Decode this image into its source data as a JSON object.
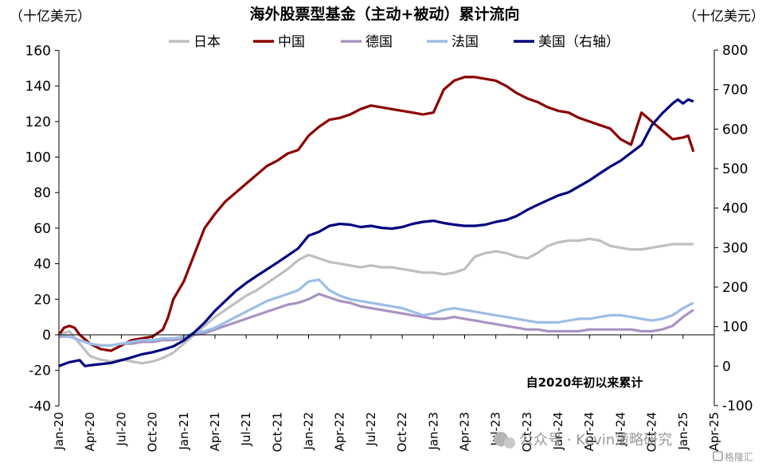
{
  "chart_data": {
    "type": "line",
    "title": "海外股票型基金（主动+被动）累计流向",
    "left_unit": "（十亿美元）",
    "right_unit": "（十亿美元）",
    "ylim_left": [
      -40,
      160
    ],
    "ylim_right": [
      -100,
      800
    ],
    "yticks_left": [
      "160",
      "140",
      "120",
      "100",
      "80",
      "60",
      "40",
      "20",
      "0",
      "-20",
      "-40"
    ],
    "yticks_right": [
      "800",
      "700",
      "600",
      "500",
      "400",
      "300",
      "200",
      "100",
      "0",
      "-100"
    ],
    "x_tick_labels": [
      "Jan-20",
      "Apr-20",
      "Jul-20",
      "Oct-20",
      "Jan-21",
      "Apr-21",
      "Jul-21",
      "Oct-21",
      "Jan-22",
      "Apr-22",
      "Jul-22",
      "Oct-22",
      "Jan-23",
      "Apr-23",
      "Jul-23",
      "Oct-23",
      "Jan-24",
      "Apr-24",
      "Jul-24",
      "Oct-24",
      "Jan-25",
      "Apr-25"
    ],
    "annotation": "自2020年初以来累计",
    "series": [
      {
        "name": "日本",
        "color": "#bfbfbf",
        "axis": "left",
        "points": [
          [
            0,
            0
          ],
          [
            1,
            2
          ],
          [
            2,
            -5
          ],
          [
            3,
            -12
          ],
          [
            4,
            -14
          ],
          [
            5,
            -15
          ],
          [
            6,
            -14
          ],
          [
            7,
            -15
          ],
          [
            8,
            -16
          ],
          [
            9,
            -15
          ],
          [
            10,
            -13
          ],
          [
            11,
            -10
          ],
          [
            12,
            -5
          ],
          [
            13,
            0
          ],
          [
            14,
            5
          ],
          [
            15,
            10
          ],
          [
            16,
            14
          ],
          [
            17,
            18
          ],
          [
            18,
            22
          ],
          [
            19,
            25
          ],
          [
            20,
            29
          ],
          [
            21,
            33
          ],
          [
            22,
            37
          ],
          [
            23,
            42
          ],
          [
            24,
            45
          ],
          [
            25,
            43
          ],
          [
            26,
            41
          ],
          [
            27,
            40
          ],
          [
            28,
            39
          ],
          [
            29,
            38
          ],
          [
            30,
            39
          ],
          [
            31,
            38
          ],
          [
            32,
            38
          ],
          [
            33,
            37
          ],
          [
            34,
            36
          ],
          [
            35,
            35
          ],
          [
            36,
            35
          ],
          [
            37,
            34
          ],
          [
            38,
            35
          ],
          [
            39,
            37
          ],
          [
            40,
            44
          ],
          [
            41,
            46
          ],
          [
            42,
            47
          ],
          [
            43,
            46
          ],
          [
            44,
            44
          ],
          [
            45,
            43
          ],
          [
            46,
            46
          ],
          [
            47,
            50
          ],
          [
            48,
            52
          ],
          [
            49,
            53
          ],
          [
            50,
            53
          ],
          [
            51,
            54
          ],
          [
            52,
            53
          ],
          [
            53,
            50
          ],
          [
            54,
            49
          ],
          [
            55,
            48
          ],
          [
            56,
            48
          ],
          [
            57,
            49
          ],
          [
            58,
            50
          ],
          [
            59,
            51
          ],
          [
            60,
            51
          ],
          [
            61,
            51
          ]
        ]
      },
      {
        "name": "中国",
        "color": "#8b0000",
        "axis": "left",
        "points": [
          [
            0,
            0
          ],
          [
            0.5,
            4
          ],
          [
            1,
            5
          ],
          [
            1.5,
            4
          ],
          [
            2,
            0
          ],
          [
            3,
            -5
          ],
          [
            4,
            -8
          ],
          [
            5,
            -9
          ],
          [
            6,
            -6
          ],
          [
            7,
            -3
          ],
          [
            8,
            -2
          ],
          [
            9,
            -1
          ],
          [
            10,
            3
          ],
          [
            10.5,
            10
          ],
          [
            11,
            20
          ],
          [
            12,
            30
          ],
          [
            13,
            45
          ],
          [
            14,
            60
          ],
          [
            15,
            68
          ],
          [
            16,
            75
          ],
          [
            17,
            80
          ],
          [
            18,
            85
          ],
          [
            19,
            90
          ],
          [
            20,
            95
          ],
          [
            21,
            98
          ],
          [
            22,
            102
          ],
          [
            23,
            104
          ],
          [
            24,
            112
          ],
          [
            25,
            117
          ],
          [
            26,
            121
          ],
          [
            27,
            122
          ],
          [
            28,
            124
          ],
          [
            29,
            127
          ],
          [
            30,
            129
          ],
          [
            31,
            128
          ],
          [
            32,
            127
          ],
          [
            33,
            126
          ],
          [
            34,
            125
          ],
          [
            35,
            124
          ],
          [
            36,
            125
          ],
          [
            37,
            138
          ],
          [
            38,
            143
          ],
          [
            39,
            145
          ],
          [
            40,
            145
          ],
          [
            41,
            144
          ],
          [
            42,
            143
          ],
          [
            43,
            140
          ],
          [
            44,
            136
          ],
          [
            45,
            133
          ],
          [
            46,
            131
          ],
          [
            47,
            128
          ],
          [
            48,
            126
          ],
          [
            49,
            125
          ],
          [
            50,
            122
          ],
          [
            51,
            120
          ],
          [
            52,
            118
          ],
          [
            53,
            116
          ],
          [
            54,
            110
          ],
          [
            55,
            107
          ],
          [
            56,
            125
          ],
          [
            57,
            120
          ],
          [
            58,
            115
          ],
          [
            59,
            110
          ],
          [
            60,
            111
          ],
          [
            60.5,
            112
          ],
          [
            61,
            103
          ]
        ]
      },
      {
        "name": "德国",
        "color": "#a893c0",
        "axis": "left",
        "points": [
          [
            0,
            -1
          ],
          [
            1,
            -1
          ],
          [
            2,
            -3
          ],
          [
            3,
            -5
          ],
          [
            4,
            -6
          ],
          [
            5,
            -6
          ],
          [
            6,
            -5
          ],
          [
            7,
            -5
          ],
          [
            8,
            -4
          ],
          [
            9,
            -4
          ],
          [
            10,
            -3
          ],
          [
            11,
            -3
          ],
          [
            12,
            -2
          ],
          [
            13,
            0
          ],
          [
            14,
            1
          ],
          [
            15,
            3
          ],
          [
            16,
            5
          ],
          [
            17,
            7
          ],
          [
            18,
            9
          ],
          [
            19,
            11
          ],
          [
            20,
            13
          ],
          [
            21,
            15
          ],
          [
            22,
            17
          ],
          [
            23,
            18
          ],
          [
            24,
            20
          ],
          [
            25,
            23
          ],
          [
            26,
            21
          ],
          [
            27,
            19
          ],
          [
            28,
            18
          ],
          [
            29,
            16
          ],
          [
            30,
            15
          ],
          [
            31,
            14
          ],
          [
            32,
            13
          ],
          [
            33,
            12
          ],
          [
            34,
            11
          ],
          [
            35,
            10
          ],
          [
            36,
            9
          ],
          [
            37,
            9
          ],
          [
            38,
            10
          ],
          [
            39,
            9
          ],
          [
            40,
            8
          ],
          [
            41,
            7
          ],
          [
            42,
            6
          ],
          [
            43,
            5
          ],
          [
            44,
            4
          ],
          [
            45,
            3
          ],
          [
            46,
            3
          ],
          [
            47,
            2
          ],
          [
            48,
            2
          ],
          [
            49,
            2
          ],
          [
            50,
            2
          ],
          [
            51,
            3
          ],
          [
            52,
            3
          ],
          [
            53,
            3
          ],
          [
            54,
            3
          ],
          [
            55,
            3
          ],
          [
            56,
            2
          ],
          [
            57,
            2
          ],
          [
            58,
            3
          ],
          [
            59,
            5
          ],
          [
            60,
            10
          ],
          [
            61,
            14
          ]
        ]
      },
      {
        "name": "法国",
        "color": "#9dbde6",
        "axis": "left",
        "points": [
          [
            0,
            0
          ],
          [
            1,
            -1
          ],
          [
            2,
            -3
          ],
          [
            3,
            -5
          ],
          [
            4,
            -6
          ],
          [
            5,
            -6
          ],
          [
            6,
            -5
          ],
          [
            7,
            -4
          ],
          [
            8,
            -3
          ],
          [
            9,
            -3
          ],
          [
            10,
            -2
          ],
          [
            11,
            -2
          ],
          [
            12,
            -1
          ],
          [
            13,
            1
          ],
          [
            14,
            2
          ],
          [
            15,
            4
          ],
          [
            16,
            7
          ],
          [
            17,
            10
          ],
          [
            18,
            13
          ],
          [
            19,
            16
          ],
          [
            20,
            19
          ],
          [
            21,
            21
          ],
          [
            22,
            23
          ],
          [
            23,
            25
          ],
          [
            24,
            30
          ],
          [
            25,
            31
          ],
          [
            26,
            25
          ],
          [
            27,
            22
          ],
          [
            28,
            20
          ],
          [
            29,
            19
          ],
          [
            30,
            18
          ],
          [
            31,
            17
          ],
          [
            32,
            16
          ],
          [
            33,
            15
          ],
          [
            34,
            13
          ],
          [
            35,
            11
          ],
          [
            36,
            12
          ],
          [
            37,
            14
          ],
          [
            38,
            15
          ],
          [
            39,
            14
          ],
          [
            40,
            13
          ],
          [
            41,
            12
          ],
          [
            42,
            11
          ],
          [
            43,
            10
          ],
          [
            44,
            9
          ],
          [
            45,
            8
          ],
          [
            46,
            7
          ],
          [
            47,
            7
          ],
          [
            48,
            7
          ],
          [
            49,
            8
          ],
          [
            50,
            9
          ],
          [
            51,
            9
          ],
          [
            52,
            10
          ],
          [
            53,
            11
          ],
          [
            54,
            11
          ],
          [
            55,
            10
          ],
          [
            56,
            9
          ],
          [
            57,
            8
          ],
          [
            58,
            9
          ],
          [
            59,
            11
          ],
          [
            60,
            15
          ],
          [
            61,
            18
          ]
        ]
      },
      {
        "name": "美国（右轴）",
        "color": "#00007f",
        "axis": "right",
        "points": [
          [
            0,
            0
          ],
          [
            1,
            10
          ],
          [
            2,
            15
          ],
          [
            2.5,
            0
          ],
          [
            3,
            2
          ],
          [
            4,
            5
          ],
          [
            5,
            8
          ],
          [
            6,
            15
          ],
          [
            7,
            22
          ],
          [
            8,
            30
          ],
          [
            9,
            35
          ],
          [
            10,
            42
          ],
          [
            11,
            50
          ],
          [
            12,
            65
          ],
          [
            13,
            85
          ],
          [
            14,
            110
          ],
          [
            15,
            140
          ],
          [
            16,
            165
          ],
          [
            17,
            190
          ],
          [
            18,
            210
          ],
          [
            19,
            228
          ],
          [
            20,
            245
          ],
          [
            21,
            262
          ],
          [
            22,
            280
          ],
          [
            23,
            298
          ],
          [
            24,
            330
          ],
          [
            25,
            340
          ],
          [
            26,
            355
          ],
          [
            27,
            360
          ],
          [
            28,
            358
          ],
          [
            29,
            352
          ],
          [
            30,
            355
          ],
          [
            31,
            350
          ],
          [
            32,
            348
          ],
          [
            33,
            352
          ],
          [
            34,
            360
          ],
          [
            35,
            365
          ],
          [
            36,
            368
          ],
          [
            37,
            362
          ],
          [
            38,
            358
          ],
          [
            39,
            355
          ],
          [
            40,
            355
          ],
          [
            41,
            358
          ],
          [
            42,
            365
          ],
          [
            43,
            370
          ],
          [
            44,
            380
          ],
          [
            45,
            395
          ],
          [
            46,
            408
          ],
          [
            47,
            420
          ],
          [
            48,
            432
          ],
          [
            49,
            440
          ],
          [
            50,
            455
          ],
          [
            51,
            470
          ],
          [
            52,
            488
          ],
          [
            53,
            505
          ],
          [
            54,
            520
          ],
          [
            55,
            540
          ],
          [
            56,
            560
          ],
          [
            57,
            610
          ],
          [
            58,
            640
          ],
          [
            59,
            665
          ],
          [
            59.5,
            675
          ],
          [
            60,
            665
          ],
          [
            60.5,
            675
          ],
          [
            61,
            670
          ]
        ]
      }
    ]
  },
  "watermark": {
    "text": "公众号 · Kevin策略研究",
    "secondary": "格隆汇"
  }
}
